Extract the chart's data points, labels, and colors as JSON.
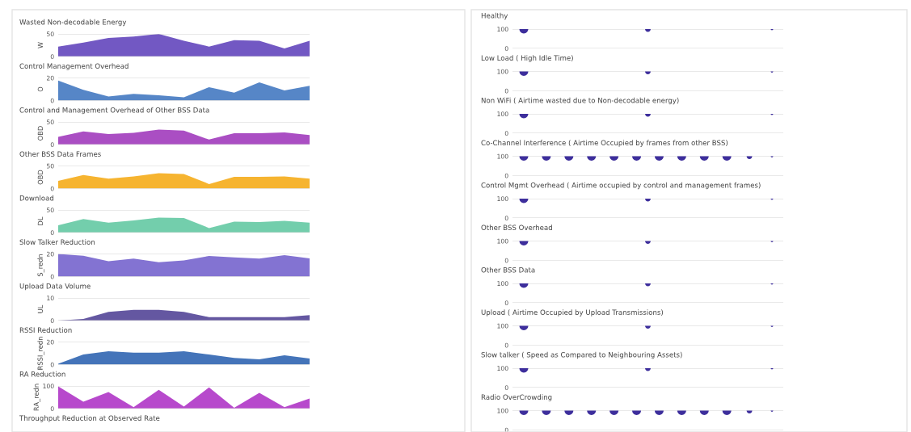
{
  "chart_data": [
    {
      "type": "area",
      "title": "Wasted Non-decodable Energy",
      "ylabel": "W",
      "categories": [
        null,
        null,
        null,
        null,
        null,
        null,
        null,
        null,
        null,
        null,
        null
      ],
      "values": [
        22,
        31,
        41,
        44,
        50,
        35,
        22,
        36,
        35,
        18,
        35
      ],
      "color": "#6a4fc0",
      "ylim": [
        0,
        50
      ],
      "yticks": [
        0,
        50
      ],
      "grid": "y"
    },
    {
      "type": "area",
      "title": "Control Management Overhead",
      "ylabel": "O",
      "categories": [
        null,
        null,
        null,
        null,
        null,
        null,
        null,
        null,
        null,
        null,
        null
      ],
      "values": [
        17.6,
        9.4,
        3.5,
        5.9,
        4.7,
        2.8,
        11.8,
        7,
        16,
        9,
        13
      ],
      "color": "#4d7fc4",
      "ylim": [
        0,
        20
      ],
      "yticks": [
        0,
        20
      ],
      "grid": "y"
    },
    {
      "type": "area",
      "title": "Control and Management Overhead of Other BSS Data",
      "ylabel": "OBD",
      "categories": [
        null,
        null,
        null,
        null,
        null,
        null,
        null,
        null,
        null,
        null,
        null
      ],
      "values": [
        17,
        29,
        23,
        26,
        33,
        31,
        11,
        25,
        25,
        27,
        21
      ],
      "color": "#a545c0",
      "ylim": [
        0,
        50
      ],
      "yticks": [
        0,
        50
      ],
      "grid": "y"
    },
    {
      "type": "area",
      "title": "Other BSS Data Frames",
      "ylabel": "OBD",
      "categories": [
        null,
        null,
        null,
        null,
        null,
        null,
        null,
        null,
        null,
        null,
        null
      ],
      "values": [
        17,
        30,
        22,
        27,
        34,
        32,
        10,
        26,
        26,
        27,
        22
      ],
      "color": "#f5b025",
      "ylim": [
        0,
        50
      ],
      "yticks": [
        0,
        50
      ],
      "grid": "y"
    },
    {
      "type": "area",
      "title": "Download",
      "ylabel": "DL",
      "categories": [
        null,
        null,
        null,
        null,
        null,
        null,
        null,
        null,
        null,
        null,
        null
      ],
      "values": [
        16,
        30,
        22,
        27,
        33,
        32,
        10,
        24,
        23,
        26,
        22
      ],
      "color": "#6ccba8",
      "ylim": [
        0,
        50
      ],
      "yticks": [
        0,
        50
      ],
      "grid": "y"
    },
    {
      "type": "area",
      "title": "Slow Talker Reduction",
      "ylabel": "S_redn",
      "categories": [
        null,
        null,
        null,
        null,
        null,
        null,
        null,
        null,
        null,
        null,
        null
      ],
      "values": [
        20,
        18.4,
        13.6,
        15.9,
        12.6,
        14.3,
        18.2,
        17,
        15.9,
        18.9,
        16
      ],
      "color": "#7c6bd0",
      "ylim": [
        0,
        20
      ],
      "yticks": [
        0,
        20
      ],
      "grid": "y"
    },
    {
      "type": "area",
      "title": "Upload Data Volume",
      "ylabel": "UL",
      "categories": [
        null,
        null,
        null,
        null,
        null,
        null,
        null,
        null,
        null,
        null,
        null
      ],
      "values": [
        0,
        0.7,
        3.8,
        4.7,
        4.7,
        3.8,
        1.5,
        1.5,
        1.5,
        1.5,
        2.4
      ],
      "color": "#5c4e9c",
      "ylim": [
        0,
        10
      ],
      "yticks": [
        0,
        10
      ],
      "grid": "y"
    },
    {
      "type": "area",
      "title": "RSSI Reduction",
      "ylabel": "RSSI_redn",
      "categories": [
        null,
        null,
        null,
        null,
        null,
        null,
        null,
        null,
        null,
        null,
        null
      ],
      "values": [
        0.7,
        8.9,
        11.8,
        10.6,
        10.6,
        11.8,
        8.9,
        5.9,
        4.7,
        8.2,
        5.4
      ],
      "color": "#3a6db5",
      "ylim": [
        0,
        20
      ],
      "yticks": [
        0,
        20
      ],
      "grid": "y"
    },
    {
      "type": "area",
      "title": "RA Reduction",
      "ylabel": "RA_redn",
      "categories": [
        null,
        null,
        null,
        null,
        null,
        null,
        null,
        null,
        null,
        null,
        null
      ],
      "values": [
        98,
        30,
        73,
        6,
        83,
        9,
        94,
        4,
        70,
        6,
        45
      ],
      "color": "#b33fc9",
      "ylim": [
        0,
        100
      ],
      "yticks": [
        0,
        100
      ],
      "grid": "y"
    },
    {
      "type": "other",
      "title": "Throughput Reduction at Observed Rate"
    },
    {
      "type": "bubble",
      "title": "Healthy",
      "categories": [
        null,
        null,
        null
      ],
      "values": [
        100,
        100,
        100
      ],
      "sizes": [
        1,
        0.4,
        0.08
      ],
      "color": "#3d2e9c",
      "ylim": [
        0,
        100
      ],
      "yticks": [
        0,
        100
      ],
      "grid": "y"
    },
    {
      "type": "bubble",
      "title": "Low Load ( High Idle Time)",
      "categories": [
        null,
        null,
        null
      ],
      "values": [
        100,
        100,
        100
      ],
      "sizes": [
        1,
        0.4,
        0.08
      ],
      "color": "#3d2e9c",
      "ylim": [
        0,
        100
      ],
      "yticks": [
        0,
        100
      ],
      "grid": "y"
    },
    {
      "type": "bubble",
      "title": "Non WiFi ( Airtime wasted due to Non-decodable energy)",
      "categories": [
        null,
        null,
        null
      ],
      "values": [
        100,
        100,
        100
      ],
      "sizes": [
        1,
        0.4,
        0.08
      ],
      "color": "#3d2e9c",
      "ylim": [
        0,
        100
      ],
      "yticks": [
        0,
        100
      ],
      "grid": "y"
    },
    {
      "type": "bubble",
      "title": "Co-Channel Interference ( Airtime Occupied by frames from other BSS)",
      "categories": [
        null,
        null,
        null,
        null,
        null,
        null,
        null,
        null,
        null,
        null,
        null,
        null
      ],
      "values": [
        100,
        100,
        100,
        100,
        100,
        100,
        100,
        100,
        100,
        100,
        100,
        100
      ],
      "sizes": [
        1,
        1,
        1,
        1,
        1,
        1,
        1,
        1,
        1,
        1,
        0.4,
        0.08
      ],
      "color": "#3d2e9c",
      "ylim": [
        0,
        100
      ],
      "yticks": [
        0,
        100
      ],
      "grid": "y"
    },
    {
      "type": "bubble",
      "title": "Control Mgmt Overhead ( Airtime occupied by control and management frames)",
      "categories": [
        null,
        null,
        null
      ],
      "values": [
        100,
        100,
        100
      ],
      "sizes": [
        1,
        0.4,
        0.08
      ],
      "color": "#3d2e9c",
      "ylim": [
        0,
        100
      ],
      "yticks": [
        0,
        100
      ],
      "grid": "y"
    },
    {
      "type": "bubble",
      "title": "Other BSS Overhead",
      "categories": [
        null,
        null,
        null
      ],
      "values": [
        100,
        100,
        100
      ],
      "sizes": [
        1,
        0.4,
        0.08
      ],
      "color": "#3d2e9c",
      "ylim": [
        0,
        100
      ],
      "yticks": [
        0,
        100
      ],
      "grid": "y"
    },
    {
      "type": "bubble",
      "title": "Other BSS Data",
      "categories": [
        null,
        null,
        null
      ],
      "values": [
        100,
        100,
        100
      ],
      "sizes": [
        1,
        0.4,
        0.08
      ],
      "color": "#3d2e9c",
      "ylim": [
        0,
        100
      ],
      "yticks": [
        0,
        100
      ],
      "grid": "y"
    },
    {
      "type": "bubble",
      "title": "Upload ( Airtime Occupied by Upload Transmissions)",
      "categories": [
        null,
        null,
        null
      ],
      "values": [
        100,
        100,
        100
      ],
      "sizes": [
        1,
        0.4,
        0.08
      ],
      "color": "#3d2e9c",
      "ylim": [
        0,
        100
      ],
      "yticks": [
        0,
        100
      ],
      "grid": "y"
    },
    {
      "type": "bubble",
      "title": "Slow talker ( Speed as Compared to Neighbouring Assets)",
      "categories": [
        null,
        null,
        null
      ],
      "values": [
        100,
        100,
        100
      ],
      "sizes": [
        1,
        0.4,
        0.08
      ],
      "color": "#3d2e9c",
      "ylim": [
        0,
        100
      ],
      "yticks": [
        0,
        100
      ],
      "grid": "y"
    },
    {
      "type": "bubble",
      "title": "Radio OverCrowding",
      "categories": [
        null,
        null,
        null,
        null,
        null,
        null,
        null,
        null,
        null,
        null,
        null,
        null
      ],
      "values": [
        100,
        100,
        100,
        100,
        100,
        100,
        100,
        100,
        100,
        100,
        100,
        100
      ],
      "sizes": [
        1,
        1,
        1,
        1,
        1,
        1,
        1,
        1,
        1,
        1,
        0.4,
        0.08
      ],
      "color": "#3d2e9c",
      "ylim": [
        0,
        100
      ],
      "yticks": [
        0,
        100
      ],
      "grid": "y"
    }
  ]
}
